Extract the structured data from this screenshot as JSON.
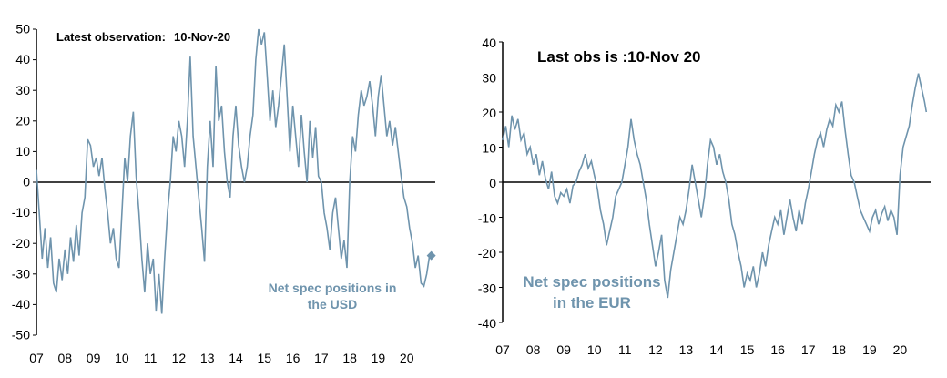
{
  "colors": {
    "series": "#6f94ad",
    "axis": "#000000",
    "marker": "#6f94ad"
  },
  "chart_data": [
    {
      "type": "line",
      "annotation_label": "Latest observation:",
      "annotation_value": "10-Nov-20",
      "series_label_line1": "Net spec positions in",
      "series_label_line2": "the USD",
      "xlim": [
        2007.0,
        2021.0
      ],
      "ylim": [
        -50,
        50
      ],
      "yticks": [
        50,
        40,
        30,
        20,
        10,
        0,
        -10,
        -20,
        -30,
        -40,
        -50
      ],
      "xticks": [
        {
          "label": "07",
          "x": 2007
        },
        {
          "label": "08",
          "x": 2008
        },
        {
          "label": "09",
          "x": 2009
        },
        {
          "label": "10",
          "x": 2010
        },
        {
          "label": "11",
          "x": 2011
        },
        {
          "label": "12",
          "x": 2012
        },
        {
          "label": "13",
          "x": 2013
        },
        {
          "label": "14",
          "x": 2014
        },
        {
          "label": "15",
          "x": 2015
        },
        {
          "label": "16",
          "x": 2016
        },
        {
          "label": "17",
          "x": 2017
        },
        {
          "label": "18",
          "x": 2018
        },
        {
          "label": "19",
          "x": 2019
        },
        {
          "label": "20",
          "x": 2020
        }
      ],
      "marker": {
        "x": 2020.86,
        "y": -24
      },
      "points": [
        [
          2007.0,
          4
        ],
        [
          2007.1,
          -10
        ],
        [
          2007.2,
          -25
        ],
        [
          2007.3,
          -15
        ],
        [
          2007.4,
          -28
        ],
        [
          2007.5,
          -18
        ],
        [
          2007.6,
          -33
        ],
        [
          2007.7,
          -36
        ],
        [
          2007.8,
          -25
        ],
        [
          2007.9,
          -32
        ],
        [
          2008.0,
          -22
        ],
        [
          2008.1,
          -30
        ],
        [
          2008.2,
          -18
        ],
        [
          2008.3,
          -26
        ],
        [
          2008.4,
          -14
        ],
        [
          2008.5,
          -24
        ],
        [
          2008.6,
          -10
        ],
        [
          2008.7,
          -5
        ],
        [
          2008.8,
          14
        ],
        [
          2008.9,
          12
        ],
        [
          2009.0,
          5
        ],
        [
          2009.1,
          8
        ],
        [
          2009.2,
          2
        ],
        [
          2009.3,
          8
        ],
        [
          2009.4,
          -2
        ],
        [
          2009.5,
          -10
        ],
        [
          2009.6,
          -20
        ],
        [
          2009.7,
          -15
        ],
        [
          2009.8,
          -25
        ],
        [
          2009.9,
          -28
        ],
        [
          2010.0,
          -10
        ],
        [
          2010.1,
          8
        ],
        [
          2010.2,
          0
        ],
        [
          2010.3,
          15
        ],
        [
          2010.4,
          23
        ],
        [
          2010.5,
          2
        ],
        [
          2010.6,
          -10
        ],
        [
          2010.7,
          -25
        ],
        [
          2010.8,
          -36
        ],
        [
          2010.9,
          -20
        ],
        [
          2011.0,
          -30
        ],
        [
          2011.1,
          -25
        ],
        [
          2011.2,
          -42
        ],
        [
          2011.3,
          -30
        ],
        [
          2011.4,
          -43
        ],
        [
          2011.5,
          -25
        ],
        [
          2011.6,
          -10
        ],
        [
          2011.7,
          0
        ],
        [
          2011.8,
          15
        ],
        [
          2011.9,
          10
        ],
        [
          2012.0,
          20
        ],
        [
          2012.1,
          15
        ],
        [
          2012.2,
          5
        ],
        [
          2012.3,
          20
        ],
        [
          2012.4,
          41
        ],
        [
          2012.5,
          15
        ],
        [
          2012.6,
          5
        ],
        [
          2012.7,
          -5
        ],
        [
          2012.8,
          -15
        ],
        [
          2012.9,
          -26
        ],
        [
          2013.0,
          5
        ],
        [
          2013.1,
          20
        ],
        [
          2013.2,
          5
        ],
        [
          2013.3,
          38
        ],
        [
          2013.4,
          20
        ],
        [
          2013.5,
          25
        ],
        [
          2013.6,
          10
        ],
        [
          2013.7,
          0
        ],
        [
          2013.8,
          -5
        ],
        [
          2013.9,
          15
        ],
        [
          2014.0,
          25
        ],
        [
          2014.1,
          12
        ],
        [
          2014.2,
          5
        ],
        [
          2014.3,
          0
        ],
        [
          2014.4,
          5
        ],
        [
          2014.5,
          15
        ],
        [
          2014.6,
          22
        ],
        [
          2014.7,
          40
        ],
        [
          2014.8,
          50
        ],
        [
          2014.9,
          45
        ],
        [
          2015.0,
          49
        ],
        [
          2015.1,
          35
        ],
        [
          2015.2,
          20
        ],
        [
          2015.3,
          30
        ],
        [
          2015.4,
          18
        ],
        [
          2015.5,
          25
        ],
        [
          2015.6,
          35
        ],
        [
          2015.7,
          45
        ],
        [
          2015.8,
          28
        ],
        [
          2015.9,
          10
        ],
        [
          2016.0,
          25
        ],
        [
          2016.1,
          15
        ],
        [
          2016.2,
          5
        ],
        [
          2016.3,
          22
        ],
        [
          2016.4,
          10
        ],
        [
          2016.5,
          0
        ],
        [
          2016.6,
          20
        ],
        [
          2016.7,
          8
        ],
        [
          2016.8,
          18
        ],
        [
          2016.9,
          2
        ],
        [
          2017.0,
          0
        ],
        [
          2017.1,
          -10
        ],
        [
          2017.2,
          -15
        ],
        [
          2017.3,
          -22
        ],
        [
          2017.4,
          -10
        ],
        [
          2017.5,
          -5
        ],
        [
          2017.6,
          -15
        ],
        [
          2017.7,
          -25
        ],
        [
          2017.8,
          -19
        ],
        [
          2017.9,
          -28
        ],
        [
          2018.0,
          0
        ],
        [
          2018.1,
          15
        ],
        [
          2018.2,
          10
        ],
        [
          2018.3,
          22
        ],
        [
          2018.4,
          30
        ],
        [
          2018.5,
          25
        ],
        [
          2018.6,
          28
        ],
        [
          2018.7,
          33
        ],
        [
          2018.8,
          25
        ],
        [
          2018.9,
          15
        ],
        [
          2019.0,
          28
        ],
        [
          2019.1,
          35
        ],
        [
          2019.2,
          25
        ],
        [
          2019.3,
          15
        ],
        [
          2019.4,
          20
        ],
        [
          2019.5,
          12
        ],
        [
          2019.6,
          18
        ],
        [
          2019.7,
          10
        ],
        [
          2019.8,
          2
        ],
        [
          2019.9,
          -5
        ],
        [
          2020.0,
          -8
        ],
        [
          2020.1,
          -15
        ],
        [
          2020.2,
          -20
        ],
        [
          2020.3,
          -28
        ],
        [
          2020.4,
          -24
        ],
        [
          2020.5,
          -33
        ],
        [
          2020.6,
          -34
        ],
        [
          2020.7,
          -30
        ],
        [
          2020.8,
          -24
        ],
        [
          2020.86,
          -24
        ]
      ]
    },
    {
      "type": "line",
      "annotation_label": "Last obs is :10-Nov 20",
      "series_label_line1": "Net spec positions",
      "series_label_line2": "in the EUR",
      "xlim": [
        2007.0,
        2021.0
      ],
      "ylim": [
        -40,
        40
      ],
      "yticks": [
        40,
        30,
        20,
        10,
        0,
        -10,
        -20,
        -30,
        -40
      ],
      "xticks": [
        {
          "label": "07",
          "x": 2007
        },
        {
          "label": "08",
          "x": 2008
        },
        {
          "label": "09",
          "x": 2009
        },
        {
          "label": "10",
          "x": 2010
        },
        {
          "label": "11",
          "x": 2011
        },
        {
          "label": "12",
          "x": 2012
        },
        {
          "label": "13",
          "x": 2013
        },
        {
          "label": "14",
          "x": 2014
        },
        {
          "label": "15",
          "x": 2015
        },
        {
          "label": "16",
          "x": 2016
        },
        {
          "label": "17",
          "x": 2017
        },
        {
          "label": "18",
          "x": 2018
        },
        {
          "label": "19",
          "x": 2019
        },
        {
          "label": "20",
          "x": 2020
        }
      ],
      "points": [
        [
          2007.0,
          12
        ],
        [
          2007.1,
          16
        ],
        [
          2007.2,
          10
        ],
        [
          2007.3,
          19
        ],
        [
          2007.4,
          15
        ],
        [
          2007.5,
          18
        ],
        [
          2007.6,
          12
        ],
        [
          2007.7,
          14
        ],
        [
          2007.8,
          8
        ],
        [
          2007.9,
          10
        ],
        [
          2008.0,
          5
        ],
        [
          2008.1,
          8
        ],
        [
          2008.2,
          2
        ],
        [
          2008.3,
          6
        ],
        [
          2008.4,
          1
        ],
        [
          2008.5,
          -2
        ],
        [
          2008.6,
          3
        ],
        [
          2008.7,
          -4
        ],
        [
          2008.8,
          -6
        ],
        [
          2008.9,
          -3
        ],
        [
          2009.0,
          -4
        ],
        [
          2009.1,
          -2
        ],
        [
          2009.2,
          -6
        ],
        [
          2009.3,
          -1
        ],
        [
          2009.4,
          0
        ],
        [
          2009.5,
          3
        ],
        [
          2009.6,
          5
        ],
        [
          2009.7,
          8
        ],
        [
          2009.8,
          4
        ],
        [
          2009.9,
          6
        ],
        [
          2010.0,
          2
        ],
        [
          2010.1,
          -2
        ],
        [
          2010.2,
          -8
        ],
        [
          2010.3,
          -12
        ],
        [
          2010.4,
          -18
        ],
        [
          2010.5,
          -14
        ],
        [
          2010.6,
          -10
        ],
        [
          2010.7,
          -4
        ],
        [
          2010.8,
          -2
        ],
        [
          2010.9,
          0
        ],
        [
          2011.0,
          5
        ],
        [
          2011.1,
          10
        ],
        [
          2011.2,
          18
        ],
        [
          2011.3,
          12
        ],
        [
          2011.4,
          8
        ],
        [
          2011.5,
          5
        ],
        [
          2011.6,
          0
        ],
        [
          2011.7,
          -5
        ],
        [
          2011.8,
          -12
        ],
        [
          2011.9,
          -18
        ],
        [
          2012.0,
          -24
        ],
        [
          2012.1,
          -20
        ],
        [
          2012.2,
          -15
        ],
        [
          2012.3,
          -28
        ],
        [
          2012.4,
          -33
        ],
        [
          2012.5,
          -25
        ],
        [
          2012.6,
          -20
        ],
        [
          2012.7,
          -15
        ],
        [
          2012.8,
          -10
        ],
        [
          2012.9,
          -12
        ],
        [
          2013.0,
          -8
        ],
        [
          2013.1,
          -2
        ],
        [
          2013.2,
          5
        ],
        [
          2013.3,
          0
        ],
        [
          2013.4,
          -5
        ],
        [
          2013.5,
          -10
        ],
        [
          2013.6,
          -4
        ],
        [
          2013.7,
          5
        ],
        [
          2013.8,
          12
        ],
        [
          2013.9,
          10
        ],
        [
          2014.0,
          5
        ],
        [
          2014.1,
          8
        ],
        [
          2014.2,
          3
        ],
        [
          2014.3,
          0
        ],
        [
          2014.4,
          -5
        ],
        [
          2014.5,
          -12
        ],
        [
          2014.6,
          -15
        ],
        [
          2014.7,
          -20
        ],
        [
          2014.8,
          -24
        ],
        [
          2014.9,
          -30
        ],
        [
          2015.0,
          -26
        ],
        [
          2015.1,
          -28
        ],
        [
          2015.2,
          -24
        ],
        [
          2015.3,
          -30
        ],
        [
          2015.4,
          -26
        ],
        [
          2015.5,
          -20
        ],
        [
          2015.6,
          -24
        ],
        [
          2015.7,
          -18
        ],
        [
          2015.8,
          -14
        ],
        [
          2015.9,
          -10
        ],
        [
          2016.0,
          -12
        ],
        [
          2016.1,
          -8
        ],
        [
          2016.2,
          -15
        ],
        [
          2016.3,
          -10
        ],
        [
          2016.4,
          -5
        ],
        [
          2016.5,
          -10
        ],
        [
          2016.6,
          -14
        ],
        [
          2016.7,
          -8
        ],
        [
          2016.8,
          -12
        ],
        [
          2016.9,
          -6
        ],
        [
          2017.0,
          -2
        ],
        [
          2017.1,
          3
        ],
        [
          2017.2,
          8
        ],
        [
          2017.3,
          12
        ],
        [
          2017.4,
          14
        ],
        [
          2017.5,
          10
        ],
        [
          2017.6,
          15
        ],
        [
          2017.7,
          18
        ],
        [
          2017.8,
          16
        ],
        [
          2017.9,
          22
        ],
        [
          2018.0,
          20
        ],
        [
          2018.1,
          23
        ],
        [
          2018.2,
          15
        ],
        [
          2018.3,
          8
        ],
        [
          2018.4,
          2
        ],
        [
          2018.5,
          0
        ],
        [
          2018.6,
          -4
        ],
        [
          2018.7,
          -8
        ],
        [
          2018.8,
          -10
        ],
        [
          2018.9,
          -12
        ],
        [
          2019.0,
          -14
        ],
        [
          2019.1,
          -10
        ],
        [
          2019.2,
          -8
        ],
        [
          2019.3,
          -12
        ],
        [
          2019.4,
          -9
        ],
        [
          2019.5,
          -7
        ],
        [
          2019.6,
          -11
        ],
        [
          2019.7,
          -8
        ],
        [
          2019.8,
          -10
        ],
        [
          2019.9,
          -15
        ],
        [
          2020.0,
          2
        ],
        [
          2020.1,
          10
        ],
        [
          2020.2,
          13
        ],
        [
          2020.3,
          16
        ],
        [
          2020.4,
          22
        ],
        [
          2020.5,
          27
        ],
        [
          2020.6,
          31
        ],
        [
          2020.7,
          27
        ],
        [
          2020.8,
          23
        ],
        [
          2020.86,
          20
        ]
      ]
    }
  ]
}
